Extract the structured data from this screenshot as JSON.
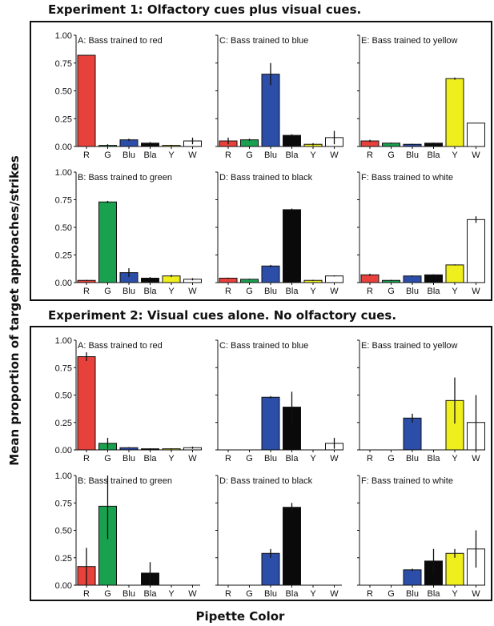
{
  "figure": {
    "ylabel": "Mean proportion of target approaches/strikes",
    "xlabel": "Pipette Color"
  },
  "y_ticks": [
    "1.00",
    "0.75",
    "0.50",
    "0.25",
    "0.00"
  ],
  "categories": [
    "R",
    "G",
    "Blu",
    "Bla",
    "Y",
    "W"
  ],
  "colors": {
    "R": "#e8413c",
    "G": "#1aa150",
    "Blu": "#2c4ea8",
    "Bla": "#0a0a0a",
    "Y": "#f0ef1e",
    "W": "#ffffff"
  },
  "experiments": [
    {
      "title": "Experiment 1: Olfactory cues plus visual cues.",
      "panels": [
        {
          "label": "A: Bass trained to red"
        },
        {
          "label": "C: Bass trained to blue"
        },
        {
          "label": "E: Bass trained to yellow"
        },
        {
          "label": "B: Bass trained to green"
        },
        {
          "label": "D: Bass trained to black"
        },
        {
          "label": "F: Bass trained to white"
        }
      ]
    },
    {
      "title": "Experiment 2: Visual cues alone. No olfactory cues.",
      "panels": [
        {
          "label": "A: Bass trained to red"
        },
        {
          "label": "C: Bass trained to blue"
        },
        {
          "label": "E: Bass trained to yellow"
        },
        {
          "label": "B: Bass trained to green"
        },
        {
          "label": "D: Bass trained to black"
        },
        {
          "label": "F: Bass trained to white"
        }
      ]
    }
  ],
  "chart_data": [
    {
      "type": "bar",
      "title": "A: Bass trained to red",
      "categories": [
        "R",
        "G",
        "Blu",
        "Bla",
        "Y",
        "W"
      ],
      "values": [
        0.82,
        0.01,
        0.06,
        0.03,
        0.01,
        0.05
      ],
      "errors": [
        0,
        0.01,
        0.01,
        0.01,
        0.005,
        0.03
      ],
      "ylim": [
        0,
        1
      ]
    },
    {
      "type": "bar",
      "title": "C: Bass trained to blue",
      "categories": [
        "R",
        "G",
        "Blu",
        "Bla",
        "Y",
        "W"
      ],
      "values": [
        0.05,
        0.06,
        0.65,
        0.1,
        0.02,
        0.08
      ],
      "errors": [
        0.03,
        0.01,
        0.1,
        0.01,
        0.01,
        0.06
      ],
      "ylim": [
        0,
        1
      ]
    },
    {
      "type": "bar",
      "title": "E: Bass trained to yellow",
      "categories": [
        "R",
        "G",
        "Blu",
        "Bla",
        "Y",
        "W"
      ],
      "values": [
        0.05,
        0.03,
        0.02,
        0.03,
        0.61,
        0.21
      ],
      "errors": [
        0.01,
        0.005,
        0.005,
        0.005,
        0.01,
        0
      ],
      "ylim": [
        0,
        1
      ]
    },
    {
      "type": "bar",
      "title": "B: Bass trained to green",
      "categories": [
        "R",
        "G",
        "Blu",
        "Bla",
        "Y",
        "W"
      ],
      "values": [
        0.02,
        0.73,
        0.09,
        0.04,
        0.06,
        0.03
      ],
      "errors": [
        0.005,
        0.01,
        0.04,
        0.01,
        0.01,
        0.01
      ],
      "ylim": [
        0,
        1
      ]
    },
    {
      "type": "bar",
      "title": "D: Bass trained to black",
      "categories": [
        "R",
        "G",
        "Blu",
        "Bla",
        "Y",
        "W"
      ],
      "values": [
        0.04,
        0.03,
        0.15,
        0.66,
        0.02,
        0.06
      ],
      "errors": [
        0.005,
        0.005,
        0.01,
        0.01,
        0.005,
        0.005
      ],
      "ylim": [
        0,
        1
      ]
    },
    {
      "type": "bar",
      "title": "F: Bass trained to white",
      "categories": [
        "R",
        "G",
        "Blu",
        "Bla",
        "Y",
        "W"
      ],
      "values": [
        0.07,
        0.02,
        0.06,
        0.07,
        0.16,
        0.57
      ],
      "errors": [
        0.01,
        0.005,
        0.005,
        0.005,
        0.005,
        0.03
      ],
      "ylim": [
        0,
        1
      ]
    },
    {
      "type": "bar",
      "title": "A: Bass trained to red",
      "categories": [
        "R",
        "G",
        "Blu",
        "Bla",
        "Y",
        "W"
      ],
      "values": [
        0.85,
        0.06,
        0.02,
        0.01,
        0.01,
        0.02
      ],
      "errors": [
        0.04,
        0.05,
        0.005,
        0.005,
        0.005,
        0.01
      ],
      "ylim": [
        0,
        1
      ]
    },
    {
      "type": "bar",
      "title": "C: Bass trained to blue",
      "categories": [
        "R",
        "G",
        "Blu",
        "Bla",
        "Y",
        "W"
      ],
      "values": [
        0,
        0,
        0.48,
        0.39,
        0,
        0.06
      ],
      "errors": [
        0,
        0,
        0.01,
        0.14,
        0,
        0.05
      ],
      "ylim": [
        0,
        1
      ]
    },
    {
      "type": "bar",
      "title": "E: Bass trained to yellow",
      "categories": [
        "R",
        "G",
        "Blu",
        "Bla",
        "Y",
        "W"
      ],
      "values": [
        0,
        0,
        0.29,
        0,
        0.45,
        0.25
      ],
      "errors": [
        0,
        0,
        0.04,
        0,
        0.21,
        0.25
      ],
      "ylim": [
        0,
        1
      ]
    },
    {
      "type": "bar",
      "title": "B: Bass trained to green",
      "categories": [
        "R",
        "G",
        "Blu",
        "Bla",
        "Y",
        "W"
      ],
      "values": [
        0.17,
        0.72,
        0,
        0.11,
        0,
        0
      ],
      "errors": [
        0.17,
        0.3,
        0,
        0.1,
        0,
        0
      ],
      "ylim": [
        0,
        1
      ]
    },
    {
      "type": "bar",
      "title": "D: Bass trained to black",
      "categories": [
        "R",
        "G",
        "Blu",
        "Bla",
        "Y",
        "W"
      ],
      "values": [
        0,
        0,
        0.29,
        0.71,
        0,
        0
      ],
      "errors": [
        0,
        0,
        0.04,
        0.04,
        0,
        0
      ],
      "ylim": [
        0,
        1
      ]
    },
    {
      "type": "bar",
      "title": "F: Bass trained to white",
      "categories": [
        "R",
        "G",
        "Blu",
        "Bla",
        "Y",
        "W"
      ],
      "values": [
        0,
        0,
        0.14,
        0.22,
        0.29,
        0.33
      ],
      "errors": [
        0,
        0,
        0.01,
        0.11,
        0.04,
        0.17
      ],
      "ylim": [
        0,
        1
      ]
    }
  ]
}
